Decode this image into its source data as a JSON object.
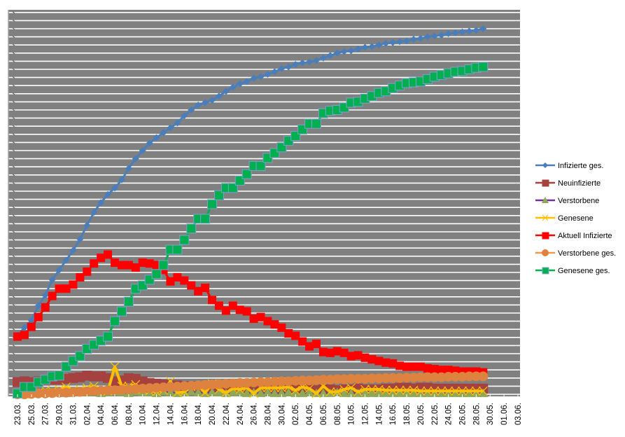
{
  "chart_data": {
    "type": "line",
    "title": "",
    "xlabel": "",
    "ylabel": "",
    "y_tick_labels_shown": false,
    "ylim": [
      0,
      47
    ],
    "grid": true,
    "plot_background": "#808080",
    "gridline_color": "#FFFFFF",
    "legend_position": "right",
    "x_categories_first": "23.03.",
    "x_tick_labels": [
      "23.03.",
      "25.03.",
      "27.03.",
      "29.03.",
      "31.03.",
      "02.04.",
      "04.04.",
      "06.04.",
      "08.04.",
      "10.04.",
      "12.04.",
      "14.04.",
      "16.04.",
      "18.04.",
      "20.04.",
      "22.04.",
      "24.04.",
      "26.04.",
      "28.04.",
      "30.04.",
      "02.05.",
      "04.05.",
      "06.05.",
      "08.05.",
      "10.05.",
      "12.05.",
      "14.05.",
      "16.05.",
      "18.05.",
      "20.05.",
      "22.05.",
      "24.05.",
      "26.05.",
      "28.05.",
      "30.05.",
      "01.06.",
      "03.06."
    ],
    "series": [
      {
        "name": "Infizierte ges.",
        "color": "#4A7EBB",
        "marker": "diamond",
        "marker_color": "#4A7EBB",
        "values": [
          7.3,
          8.2,
          9.1,
          10.9,
          12.2,
          14.1,
          15.3,
          16.5,
          17.7,
          19.1,
          20.8,
          22.4,
          23.6,
          24.6,
          25.4,
          26.4,
          27.8,
          29.0,
          30.0,
          30.9,
          31.6,
          32.2,
          32.8,
          33.4,
          34.3,
          35.0,
          35.6,
          35.9,
          36.2,
          36.7,
          37.3,
          37.8,
          38.2,
          38.5,
          38.9,
          39.1,
          39.4,
          39.7,
          40.1,
          40.3,
          40.6,
          40.8,
          40.9,
          41.1,
          41.4,
          41.7,
          42.0,
          42.2,
          42.3,
          42.5,
          42.7,
          42.8,
          43.0,
          43.2,
          43.3,
          43.4,
          43.5,
          43.7,
          43.8,
          44.0,
          44.1,
          44.2,
          44.4,
          44.5,
          44.6,
          44.7,
          44.8,
          45.0
        ]
      },
      {
        "name": "Neuinfizierte",
        "color": "#A5413E",
        "marker": "square",
        "marker_color": "#A5413E",
        "values": [
          1.5,
          1.6,
          1.5,
          1.6,
          1.7,
          1.8,
          1.8,
          1.9,
          2.0,
          2.1,
          2.3,
          2.2,
          2.2,
          2.0,
          1.6,
          1.7,
          2.0,
          1.9,
          1.6,
          1.4,
          1.3,
          1.2,
          1.1,
          1.1,
          1.0,
          1.0,
          0.9,
          0.9,
          0.8,
          0.8,
          0.7,
          0.8,
          0.7,
          0.7,
          0.6,
          0.7,
          0.7,
          0.6,
          0.6,
          0.7,
          0.6,
          0.6,
          0.6,
          0.5,
          0.6,
          0.6,
          0.5,
          0.6,
          0.6,
          0.7,
          0.6,
          0.6,
          0.6,
          0.7,
          0.7,
          0.8,
          0.8,
          0.7,
          0.8,
          0.8,
          0.7,
          0.7,
          0.7,
          0.7,
          0.7,
          0.7,
          0.7,
          0.7
        ]
      },
      {
        "name": "Verstorbene",
        "color": "#7030A0",
        "marker": "triangle",
        "marker_color": "#8EA853",
        "values": [
          0.1,
          0.1,
          0.2,
          0.1,
          0.2,
          0.3,
          0.2,
          0.1,
          0.3,
          0.2,
          0.2,
          0.3,
          0.1,
          0.2,
          0.3,
          0.2,
          0.1,
          0.3,
          0.2,
          0.2,
          0.1,
          0.3,
          0.2,
          0.1,
          0.2,
          0.3,
          0.2,
          0.1,
          0.2,
          0.2,
          0.1,
          0.2,
          0.2,
          0.1,
          0.2,
          0.1,
          0.2,
          0.1,
          0.1,
          0.2,
          0.1,
          0.1,
          0.2,
          0.1,
          0.1,
          0.1,
          0.2,
          0.1,
          0.1,
          0.1,
          0.1,
          0.1,
          0.1,
          0.1,
          0.1,
          0.1,
          0.1,
          0.1,
          0.1,
          0.1,
          0.1,
          0.1,
          0.1,
          0.1,
          0.1,
          0.1,
          0.1,
          0.1
        ]
      },
      {
        "name": "Genesene",
        "color": "#FFC000",
        "marker": "x",
        "marker_color": "#FFC000",
        "values": [
          0,
          0,
          0.1,
          0.2,
          0.5,
          0.4,
          0.6,
          0.9,
          0.5,
          0.6,
          0.8,
          1.0,
          0.5,
          0.4,
          3.4,
          1.0,
          1.0,
          1.2,
          0.6,
          0.4,
          0.3,
          0.5,
          1.6,
          0.2,
          0.3,
          0.9,
          1.0,
          0.2,
          1.3,
          0.6,
          0.2,
          0.7,
          0.6,
          0.8,
          0.1,
          0.8,
          0.8,
          0.8,
          0.8,
          0.9,
          0.5,
          0.9,
          0.7,
          0.1,
          1.0,
          0.3,
          0.3,
          0.6,
          0.8,
          0.3,
          0.6,
          0.6,
          0.6,
          0.5,
          0.5,
          0.5,
          0.5,
          0.5,
          0.4,
          0.4,
          0.4,
          0.4,
          0.4,
          0.4,
          0.4,
          0.4,
          0.4,
          0.4
        ]
      },
      {
        "name": "Aktuell Infizierte",
        "color": "#FF0000",
        "marker": "square-star",
        "marker_color": "#FF0000",
        "values": [
          7.1,
          7.3,
          8.3,
          9.5,
          10.7,
          12.1,
          13.0,
          13.0,
          13.5,
          14.4,
          15.1,
          16.1,
          16.8,
          17.2,
          16.2,
          15.9,
          15.9,
          15.6,
          16.2,
          16.1,
          15.9,
          15.3,
          13.9,
          14.4,
          14.0,
          13.4,
          12.7,
          13.1,
          11.6,
          10.9,
          10.3,
          10.9,
          10.4,
          10.2,
          9.3,
          9.5,
          9.0,
          8.6,
          8.2,
          7.5,
          7.2,
          6.5,
          5.9,
          6.2,
          5.2,
          5.1,
          5.3,
          5.1,
          4.7,
          4.8,
          4.5,
          4.3,
          4.1,
          3.9,
          3.8,
          3.5,
          3.4,
          3.4,
          3.4,
          3.2,
          3.1,
          3.0,
          3.0,
          2.9,
          2.8,
          2.8,
          2.8,
          2.7
        ]
      },
      {
        "name": "Verstorbene ges.",
        "color": "#F79646",
        "marker": "circle",
        "marker_color": "#DD823F",
        "values": [
          0.0,
          0.0,
          0.05,
          0.1,
          0.1,
          0.15,
          0.2,
          0.2,
          0.25,
          0.3,
          0.35,
          0.4,
          0.45,
          0.5,
          0.5,
          0.55,
          0.6,
          0.65,
          0.7,
          0.75,
          0.8,
          0.85,
          0.9,
          0.95,
          1.0,
          1.05,
          1.1,
          1.15,
          1.2,
          1.25,
          1.3,
          1.35,
          1.4,
          1.4,
          1.45,
          1.5,
          1.5,
          1.55,
          1.6,
          1.6,
          1.65,
          1.7,
          1.7,
          1.75,
          1.8,
          1.8,
          1.85,
          1.85,
          1.9,
          1.9,
          1.9,
          1.95,
          1.95,
          2.0,
          2.0,
          2.0,
          2.05,
          2.05,
          2.1,
          2.1,
          2.1,
          2.1,
          2.15,
          2.15,
          2.15,
          2.2,
          2.2,
          2.2
        ]
      },
      {
        "name": "Genesene ges.",
        "color": "#00B050",
        "marker": "square",
        "marker_color": "#00B050",
        "values": [
          0.1,
          0.9,
          0.9,
          1.5,
          1.8,
          2.2,
          2.3,
          3.4,
          4.1,
          4.7,
          5.6,
          6.1,
          6.6,
          7.1,
          9.0,
          10.2,
          11.4,
          13.0,
          13.4,
          14.1,
          14.8,
          15.9,
          17.8,
          17.8,
          19.0,
          20.4,
          21.6,
          21.6,
          23.4,
          24.5,
          25.4,
          25.4,
          26.3,
          27.1,
          28.1,
          28.1,
          29.1,
          29.7,
          30.4,
          31.2,
          31.8,
          32.6,
          33.3,
          33.3,
          34.6,
          34.9,
          35.0,
          35.3,
          35.9,
          36.0,
          36.4,
          36.7,
          37.1,
          37.3,
          37.7,
          38.0,
          38.3,
          38.4,
          38.5,
          38.8,
          39.1,
          39.3,
          39.5,
          39.7,
          39.8,
          40.0,
          40.2,
          40.3
        ]
      }
    ]
  }
}
